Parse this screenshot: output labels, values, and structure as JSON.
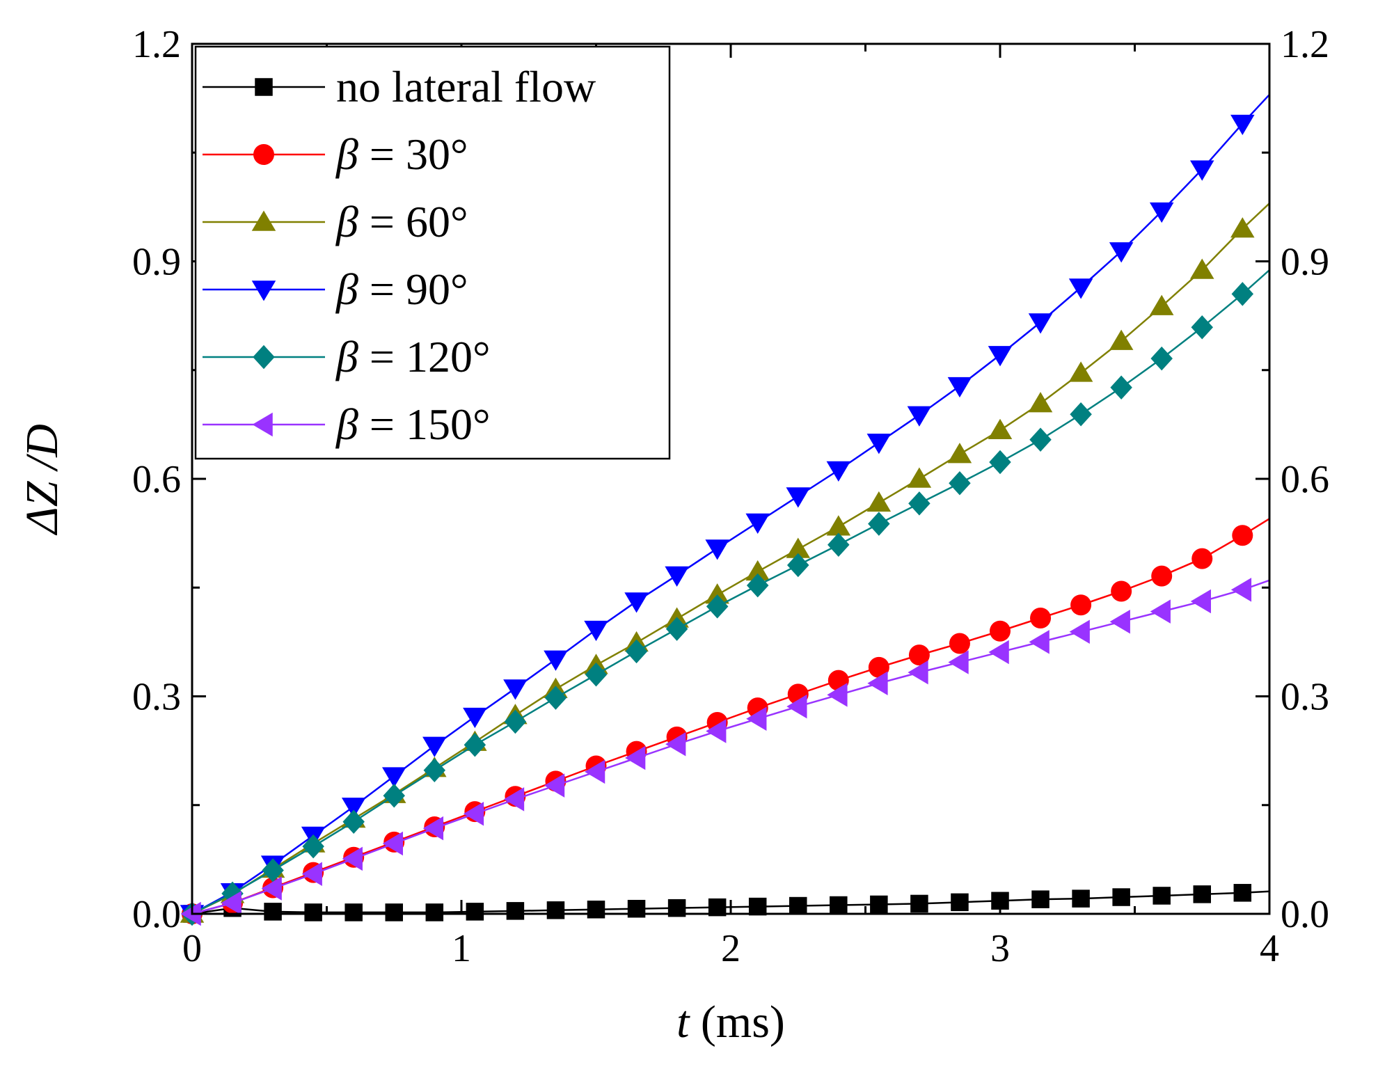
{
  "chart_data": {
    "type": "line",
    "title": "",
    "xlabel_italic": "t",
    "xlabel_rest": " (ms)",
    "ylabel": "ΔZ /D",
    "xlim": [
      0,
      4
    ],
    "ylim": [
      0,
      1.2
    ],
    "x_ticks": [
      "0",
      "1",
      "2",
      "3",
      "4"
    ],
    "y_ticks": [
      "0.0",
      "0.3",
      "0.6",
      "0.9",
      "1.2"
    ],
    "right_y_ticks": [
      "0.0",
      "0.3",
      "0.6",
      "0.9",
      "1.2"
    ],
    "grid": false,
    "legend_position": "top-left",
    "x": [
      0,
      0.15,
      0.3,
      0.45,
      0.6,
      0.75,
      0.9,
      1.05,
      1.2,
      1.35,
      1.5,
      1.65,
      1.8,
      1.95,
      2.1,
      2.25,
      2.4,
      2.55,
      2.7,
      2.85,
      3.0,
      3.15,
      3.3,
      3.45,
      3.6,
      3.75,
      3.9
    ],
    "series": [
      {
        "name": "no lateral flow",
        "label_lead": "",
        "label_rest": "no lateral flow",
        "color": "#000000",
        "marker": "square",
        "values": [
          0,
          0.008,
          0.003,
          0.002,
          0.002,
          0.002,
          0.002,
          0.003,
          0.004,
          0.005,
          0.006,
          0.007,
          0.008,
          0.009,
          0.01,
          0.011,
          0.012,
          0.013,
          0.014,
          0.016,
          0.018,
          0.02,
          0.021,
          0.023,
          0.025,
          0.027,
          0.029
        ],
        "line_end": 0.031
      },
      {
        "name": "β = 30°",
        "label_lead": "β",
        "label_rest": " = 30°",
        "color": "#ff0000",
        "marker": "circle",
        "values": [
          0,
          0.015,
          0.036,
          0.057,
          0.078,
          0.099,
          0.12,
          0.141,
          0.162,
          0.183,
          0.204,
          0.224,
          0.244,
          0.264,
          0.284,
          0.303,
          0.322,
          0.34,
          0.357,
          0.373,
          0.39,
          0.408,
          0.426,
          0.445,
          0.466,
          0.49,
          0.522
        ],
        "line_end": 0.545
      },
      {
        "name": "β = 60°",
        "label_lead": "β",
        "label_rest": " = 60°",
        "color": "#808000",
        "marker": "triangle-up",
        "values": [
          0,
          0.027,
          0.062,
          0.097,
          0.131,
          0.165,
          0.201,
          0.237,
          0.274,
          0.31,
          0.343,
          0.374,
          0.407,
          0.44,
          0.472,
          0.503,
          0.534,
          0.567,
          0.6,
          0.634,
          0.667,
          0.704,
          0.746,
          0.79,
          0.838,
          0.888,
          0.945
        ],
        "line_end": 0.98
      },
      {
        "name": "β = 90°",
        "label_lead": "β",
        "label_rest": " = 90°",
        "color": "#0000ff",
        "marker": "triangle-down",
        "values": [
          0,
          0.03,
          0.068,
          0.108,
          0.148,
          0.19,
          0.232,
          0.272,
          0.311,
          0.351,
          0.392,
          0.431,
          0.467,
          0.504,
          0.54,
          0.576,
          0.612,
          0.65,
          0.688,
          0.728,
          0.771,
          0.816,
          0.864,
          0.914,
          0.969,
          1.027,
          1.09
        ],
        "line_end": 1.13
      },
      {
        "name": "β = 120°",
        "label_lead": "β",
        "label_rest": " = 120°",
        "color": "#008080",
        "marker": "diamond",
        "values": [
          0,
          0.028,
          0.06,
          0.093,
          0.127,
          0.163,
          0.198,
          0.233,
          0.265,
          0.298,
          0.33,
          0.362,
          0.393,
          0.424,
          0.453,
          0.481,
          0.509,
          0.538,
          0.566,
          0.594,
          0.623,
          0.654,
          0.689,
          0.726,
          0.766,
          0.809,
          0.855
        ],
        "line_end": 0.888
      },
      {
        "name": "β = 150°",
        "label_lead": "β",
        "label_rest": " = 150°",
        "color": "#9933ff",
        "marker": "triangle-left",
        "values": [
          0,
          0.015,
          0.035,
          0.055,
          0.076,
          0.097,
          0.118,
          0.138,
          0.158,
          0.177,
          0.196,
          0.215,
          0.234,
          0.252,
          0.269,
          0.286,
          0.302,
          0.318,
          0.333,
          0.347,
          0.361,
          0.375,
          0.389,
          0.403,
          0.417,
          0.431,
          0.447
        ],
        "line_end": 0.46
      }
    ]
  }
}
